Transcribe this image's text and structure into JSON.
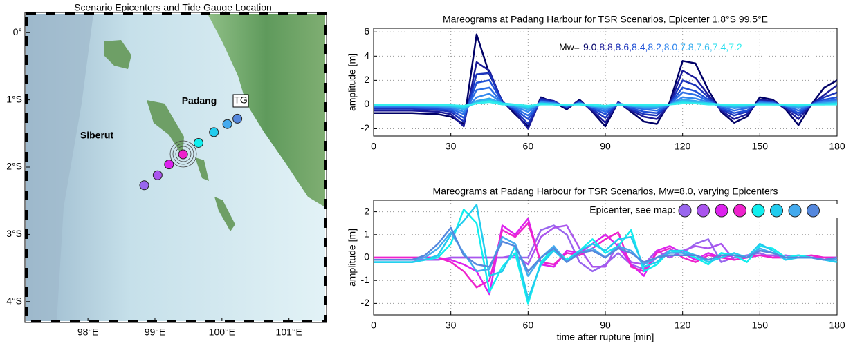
{
  "chart_data": [
    {
      "type": "map",
      "title": "Scenario Epicenters and Tide Gauge Location",
      "xlim": [
        97.08,
        101.54
      ],
      "ylim": [
        -4.29,
        0.28
      ],
      "xticks": [
        {
          "value": 98,
          "label": "98°E"
        },
        {
          "value": 99,
          "label": "99°E"
        },
        {
          "value": 100,
          "label": "100°E"
        },
        {
          "value": 101,
          "label": "101°E"
        }
      ],
      "yticks": [
        {
          "value": 0,
          "label": "0°"
        },
        {
          "value": -1,
          "label": "1°S"
        },
        {
          "value": -2,
          "label": "2°S"
        },
        {
          "value": -3,
          "label": "3°S"
        },
        {
          "value": -4,
          "label": "4°S"
        }
      ],
      "x": [
        98.84,
        99.04,
        99.21,
        99.42,
        99.65,
        99.88,
        100.08,
        100.23
      ],
      "values": [
        -2.27,
        -2.12,
        -1.96,
        -1.81,
        -1.64,
        -1.48,
        -1.36,
        -1.28
      ],
      "colors": [
        "#9966ee",
        "#aa55ee",
        "#dd22ee",
        "#ee22cc",
        "#11eeee",
        "#22ccee",
        "#44aaee",
        "#5588dd"
      ],
      "annotations": [
        "Padang",
        "Siberut",
        "TG"
      ]
    },
    {
      "type": "line",
      "title": "Mareograms at Padang Harbour for TSR Scenarios, Epicenter 1.8°S 99.5°E",
      "ylabel": "amplitude [m]",
      "legend_title": "Mw=",
      "xlim": [
        0,
        180
      ],
      "xticks": [
        0,
        30,
        60,
        90,
        120,
        150,
        180
      ],
      "ylim": [
        -2.6,
        6.3
      ],
      "yticks": [
        -2,
        0,
        2,
        4,
        6
      ],
      "grid": true,
      "x": [
        0,
        5,
        10,
        15,
        20,
        25,
        30,
        35,
        40,
        45,
        50,
        55,
        60,
        65,
        70,
        75,
        80,
        85,
        90,
        95,
        100,
        105,
        110,
        115,
        120,
        125,
        130,
        135,
        140,
        145,
        150,
        155,
        160,
        165,
        170,
        175,
        180
      ],
      "series": [
        {
          "name": "9.0,",
          "color": "#000066",
          "values": [
            -0.7,
            -0.7,
            -0.7,
            -0.7,
            -0.75,
            -0.8,
            -1.0,
            -1.6,
            5.8,
            2.5,
            0.3,
            -0.8,
            -1.8,
            0.6,
            0.2,
            -0.4,
            0.4,
            -0.6,
            -1.8,
            0.2,
            -0.6,
            -1.4,
            -1.6,
            0.2,
            3.6,
            3.4,
            1.2,
            -0.6,
            -1.5,
            -1.0,
            0.6,
            0.4,
            -0.4,
            -1.7,
            0.0,
            1.4,
            2.0
          ]
        },
        {
          "name": "8.8,",
          "color": "#1a1a99",
          "values": [
            -0.5,
            -0.5,
            -0.5,
            -0.5,
            -0.55,
            -0.6,
            -0.8,
            -1.8,
            3.5,
            2.8,
            0.2,
            -0.6,
            -2.0,
            0.5,
            0.3,
            -0.3,
            0.3,
            -0.5,
            -1.5,
            0.2,
            -0.5,
            -1.0,
            -1.2,
            0.0,
            2.8,
            2.2,
            0.8,
            -0.5,
            -1.2,
            -0.8,
            0.4,
            0.3,
            -0.3,
            -1.2,
            0.0,
            0.8,
            1.6
          ]
        },
        {
          "name": "8.6,",
          "color": "#1a33bb",
          "values": [
            -0.35,
            -0.35,
            -0.35,
            -0.35,
            -0.4,
            -0.45,
            -0.6,
            -1.4,
            2.5,
            2.6,
            0.2,
            -0.5,
            -1.6,
            0.4,
            0.2,
            -0.2,
            0.2,
            -0.4,
            -1.1,
            0.1,
            -0.4,
            -0.8,
            -0.9,
            0.0,
            2.0,
            1.6,
            0.6,
            -0.4,
            -0.9,
            -0.6,
            0.3,
            0.2,
            -0.2,
            -0.9,
            0.0,
            0.6,
            1.0
          ]
        },
        {
          "name": "8.4,",
          "color": "#1f4fd6",
          "values": [
            -0.25,
            -0.25,
            -0.25,
            -0.25,
            -0.3,
            -0.35,
            -0.45,
            -1.1,
            1.8,
            2.0,
            0.2,
            -0.4,
            -1.2,
            0.3,
            0.2,
            -0.2,
            0.2,
            -0.3,
            -0.8,
            0.1,
            -0.3,
            -0.6,
            -0.7,
            0.0,
            1.4,
            1.1,
            0.4,
            -0.3,
            -0.7,
            -0.5,
            0.2,
            0.2,
            -0.2,
            -0.7,
            0.0,
            0.4,
            0.6
          ]
        },
        {
          "name": "8.2,",
          "color": "#2a6ee6",
          "values": [
            -0.18,
            -0.18,
            -0.18,
            -0.18,
            -0.2,
            -0.25,
            -0.35,
            -0.8,
            1.2,
            1.4,
            0.1,
            -0.3,
            -0.9,
            0.2,
            0.1,
            -0.1,
            0.1,
            -0.2,
            -0.6,
            0.1,
            -0.2,
            -0.4,
            -0.5,
            0.0,
            1.0,
            0.8,
            0.3,
            -0.2,
            -0.5,
            -0.3,
            0.2,
            0.1,
            -0.1,
            -0.5,
            0.0,
            0.3,
            0.4
          ]
        },
        {
          "name": "8.0,",
          "color": "#3388ee",
          "values": [
            -0.12,
            -0.12,
            -0.12,
            -0.12,
            -0.14,
            -0.18,
            -0.25,
            -0.6,
            0.6,
            0.9,
            0.1,
            -0.2,
            -0.6,
            0.2,
            0.1,
            -0.1,
            0.1,
            -0.2,
            -0.4,
            0.1,
            -0.1,
            -0.3,
            -0.3,
            0.0,
            0.6,
            0.5,
            0.2,
            -0.1,
            -0.3,
            -0.2,
            0.1,
            0.1,
            -0.1,
            -0.3,
            0.0,
            0.2,
            0.3
          ]
        },
        {
          "name": "7.8,",
          "color": "#33aaee",
          "values": [
            -0.08,
            -0.08,
            -0.08,
            -0.08,
            -0.1,
            -0.12,
            -0.18,
            -0.4,
            0.3,
            0.5,
            0.1,
            -0.1,
            -0.4,
            0.1,
            0.1,
            -0.1,
            0.1,
            -0.1,
            -0.3,
            0.0,
            -0.1,
            -0.2,
            -0.2,
            0.0,
            0.4,
            0.3,
            0.1,
            -0.1,
            -0.2,
            -0.1,
            0.1,
            0.1,
            -0.1,
            -0.2,
            0.0,
            0.1,
            0.2
          ]
        },
        {
          "name": "7.6,",
          "color": "#33bbee",
          "values": [
            -0.05,
            -0.05,
            -0.05,
            -0.05,
            -0.06,
            -0.08,
            -0.12,
            -0.3,
            0.2,
            0.4,
            0.1,
            -0.1,
            -0.3,
            0.1,
            0.0,
            -0.1,
            0.1,
            -0.1,
            -0.2,
            0.0,
            -0.1,
            -0.1,
            -0.1,
            0.0,
            0.3,
            0.2,
            0.1,
            0.0,
            -0.1,
            -0.1,
            0.1,
            0.0,
            0.0,
            -0.1,
            0.0,
            0.1,
            0.1
          ]
        },
        {
          "name": "7.4,",
          "color": "#22ddee",
          "values": [
            -0.03,
            -0.03,
            -0.03,
            -0.03,
            -0.04,
            -0.05,
            -0.08,
            -0.2,
            0.1,
            0.3,
            0.1,
            0.0,
            -0.2,
            0.1,
            0.0,
            0.0,
            0.0,
            -0.1,
            -0.1,
            0.0,
            0.0,
            -0.1,
            -0.1,
            0.0,
            0.2,
            0.1,
            0.1,
            0.0,
            -0.1,
            0.0,
            0.0,
            0.0,
            0.0,
            -0.1,
            0.0,
            0.0,
            0.1
          ]
        },
        {
          "name": "7.2",
          "color": "#33eeee",
          "values": [
            -0.02,
            -0.02,
            -0.02,
            -0.02,
            -0.02,
            -0.03,
            -0.05,
            -0.1,
            0.1,
            0.2,
            0.0,
            0.0,
            -0.1,
            0.0,
            0.0,
            0.0,
            0.0,
            0.0,
            -0.1,
            0.0,
            0.0,
            0.0,
            0.0,
            0.0,
            0.1,
            0.1,
            0.0,
            0.0,
            0.0,
            0.0,
            0.0,
            0.0,
            0.0,
            0.0,
            0.0,
            0.0,
            0.0
          ]
        }
      ]
    },
    {
      "type": "line",
      "title": "Mareograms at Padang Harbour for TSR Scenarios, Mw=8.0, varying Epicenters",
      "ylabel": "amplitude [m]",
      "xlabel": "time after rupture [min]",
      "legend_title": "Epicenter, see map:",
      "xlim": [
        0,
        180
      ],
      "xticks": [
        0,
        30,
        60,
        90,
        120,
        150,
        180
      ],
      "ylim": [
        -2.5,
        2.5
      ],
      "yticks": [
        -2,
        -1,
        0,
        1,
        2
      ],
      "grid": true,
      "x": [
        0,
        5,
        10,
        15,
        20,
        25,
        30,
        35,
        40,
        45,
        50,
        55,
        60,
        65,
        70,
        75,
        80,
        85,
        90,
        95,
        100,
        105,
        110,
        115,
        120,
        125,
        130,
        135,
        140,
        145,
        150,
        155,
        160,
        165,
        170,
        175,
        180
      ],
      "series": [
        {
          "color": "#9966ee",
          "values": [
            -0.1,
            -0.1,
            -0.1,
            -0.1,
            -0.1,
            -0.1,
            0.0,
            0.0,
            0.0,
            0.0,
            0.0,
            0.0,
            0.0,
            1.2,
            1.4,
            1.0,
            -0.2,
            -0.6,
            -0.3,
            0.2,
            -0.3,
            -0.5,
            0.0,
            0.3,
            0.2,
            0.6,
            0.8,
            -0.2,
            0.0,
            0.1,
            0.2,
            0.0,
            0.1,
            0.0,
            0.0,
            -0.1,
            0.0
          ]
        },
        {
          "color": "#aa55ee",
          "values": [
            -0.1,
            -0.1,
            -0.1,
            -0.1,
            -0.1,
            -0.1,
            0.0,
            0.0,
            0.0,
            0.0,
            0.0,
            0.1,
            -0.3,
            0.9,
            1.3,
            1.4,
            0.4,
            -0.4,
            -0.4,
            0.6,
            -0.2,
            -0.3,
            0.3,
            0.0,
            0.3,
            0.5,
            0.4,
            0.6,
            -0.1,
            0.0,
            0.1,
            0.1,
            0.0,
            0.0,
            0.0,
            0.0,
            0.0
          ]
        },
        {
          "color": "#dd22ee",
          "values": [
            0.0,
            0.0,
            0.0,
            0.0,
            0.0,
            0.0,
            -0.1,
            -0.3,
            -0.6,
            -1.6,
            1.4,
            1.0,
            1.7,
            -0.3,
            -0.4,
            0.3,
            0.2,
            0.6,
            1.0,
            0.5,
            -0.3,
            -0.8,
            0.3,
            0.5,
            0.2,
            -0.1,
            0.2,
            0.0,
            0.1,
            0.0,
            0.1,
            0.0,
            0.0,
            0.1,
            0.0,
            0.0,
            0.0
          ]
        },
        {
          "color": "#ee22cc",
          "values": [
            0.0,
            0.0,
            0.0,
            0.0,
            0.0,
            0.0,
            -0.2,
            -0.6,
            -1.3,
            -1.0,
            1.2,
            0.9,
            1.5,
            -0.2,
            -0.3,
            0.2,
            0.1,
            0.4,
            0.8,
            1.1,
            -0.4,
            -0.6,
            0.2,
            0.4,
            0.0,
            -0.2,
            0.1,
            0.0,
            -0.1,
            0.0,
            0.1,
            0.0,
            0.0,
            0.0,
            0.1,
            0.0,
            0.0
          ]
        },
        {
          "color": "#11eeee",
          "values": [
            -0.2,
            -0.2,
            -0.2,
            -0.2,
            -0.1,
            0.0,
            0.6,
            2.1,
            1.5,
            -1.5,
            -0.4,
            0.2,
            -2.0,
            -0.2,
            0.4,
            -0.1,
            0.3,
            0.8,
            0.2,
            0.5,
            1.2,
            -0.6,
            -0.3,
            0.3,
            0.2,
            0.0,
            -0.3,
            0.2,
            0.1,
            -0.2,
            0.5,
            0.4,
            0.0,
            0.1,
            0.0,
            -0.1,
            -0.1
          ]
        },
        {
          "color": "#22ccee",
          "values": [
            -0.2,
            -0.2,
            -0.2,
            -0.2,
            -0.1,
            0.1,
            1.0,
            1.6,
            2.3,
            -0.8,
            -0.6,
            0.5,
            -1.8,
            -0.3,
            0.3,
            -0.2,
            0.3,
            0.6,
            0.3,
            0.8,
            0.9,
            -0.4,
            -0.2,
            0.3,
            0.3,
            0.1,
            -0.2,
            0.0,
            0.2,
            0.0,
            0.6,
            0.3,
            -0.1,
            0.0,
            0.0,
            -0.1,
            -0.2
          ]
        },
        {
          "color": "#44aaee",
          "values": [
            -0.1,
            -0.1,
            -0.1,
            -0.1,
            0.0,
            0.4,
            1.1,
            0.2,
            -0.6,
            -0.5,
            0.9,
            0.6,
            -0.8,
            0.0,
            0.5,
            -0.2,
            0.2,
            0.4,
            0.0,
            0.5,
            0.3,
            -0.3,
            0.0,
            0.2,
            0.2,
            0.1,
            -0.1,
            0.1,
            0.1,
            0.0,
            0.4,
            0.2,
            0.0,
            0.0,
            0.0,
            -0.1,
            -0.1
          ]
        },
        {
          "color": "#5588dd",
          "values": [
            -0.1,
            -0.1,
            -0.1,
            -0.1,
            0.1,
            0.6,
            1.3,
            0.1,
            -0.3,
            -0.4,
            0.7,
            0.5,
            -0.6,
            0.0,
            0.4,
            -0.2,
            0.2,
            0.3,
            0.0,
            0.4,
            0.2,
            -0.2,
            0.0,
            0.1,
            0.1,
            0.1,
            -0.1,
            0.1,
            0.1,
            0.0,
            0.3,
            0.2,
            0.0,
            0.0,
            0.0,
            -0.1,
            0.0
          ]
        }
      ]
    }
  ]
}
